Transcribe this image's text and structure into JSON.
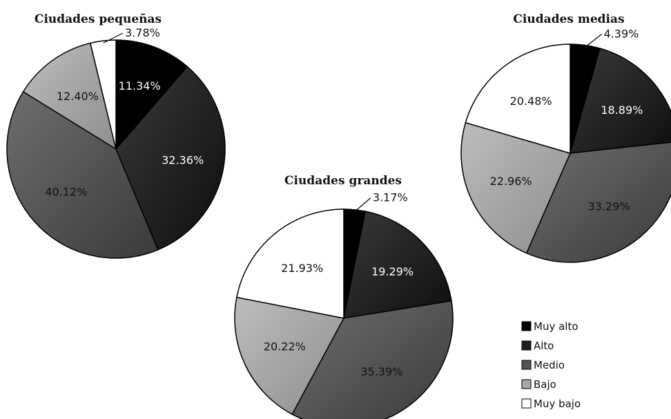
{
  "chart_data": [
    {
      "type": "pie",
      "title": "Ciudades pequeñas",
      "categories": [
        "Muy alto",
        "Alto",
        "Medio",
        "Bajo",
        "Muy bajo"
      ],
      "values": [
        11.34,
        32.36,
        40.12,
        12.4,
        3.78
      ],
      "labels": [
        "11.34%",
        "32.36%",
        "40.12%",
        "12.40%",
        "3.78%"
      ]
    },
    {
      "type": "pie",
      "title": "Ciudades grandes",
      "categories": [
        "Muy alto",
        "Alto",
        "Medio",
        "Bajo",
        "Muy bajo"
      ],
      "values": [
        3.17,
        19.29,
        35.39,
        20.22,
        21.93
      ],
      "labels": [
        "3.17%",
        "19.29%",
        "35.39%",
        "20.22%",
        "21.93%"
      ]
    },
    {
      "type": "pie",
      "title": "Ciudades medias",
      "categories": [
        "Muy alto",
        "Alto",
        "Medio",
        "Bajo",
        "Muy bajo"
      ],
      "values": [
        4.39,
        18.89,
        33.29,
        22.96,
        20.48
      ],
      "labels": [
        "4.39%",
        "18.89%",
        "33.29%",
        "22.96%",
        "20.48%"
      ]
    }
  ],
  "legend": {
    "items": [
      {
        "label": "Muy alto",
        "color": "#000000"
      },
      {
        "label": "Alto",
        "color": "#1e1e1e"
      },
      {
        "label": "Medio",
        "color": "#555555"
      },
      {
        "label": "Bajo",
        "color": "#a6a6a6"
      },
      {
        "label": "Muy bajo",
        "color": "#ffffff"
      }
    ]
  },
  "colors": {
    "muy_alto": "#000000",
    "alto": "#1e1e1e",
    "medio": "#555555",
    "bajo": "#a6a6a6",
    "muy_bajo": "#ffffff"
  }
}
